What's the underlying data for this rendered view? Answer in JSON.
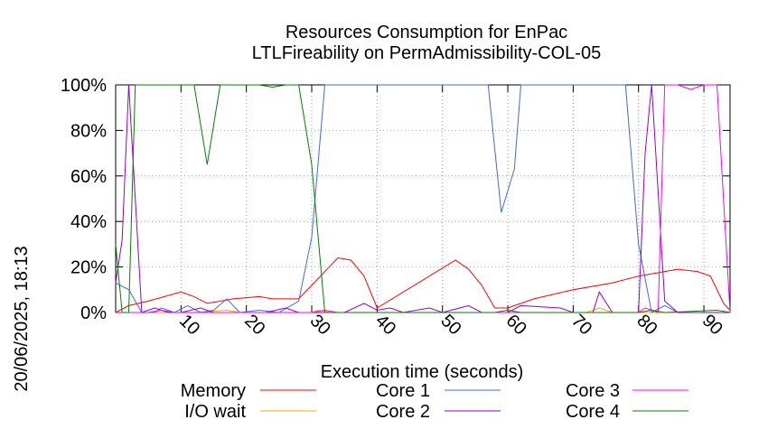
{
  "chart_data": {
    "type": "line",
    "title": "Resources Consumption for EnPac",
    "subtitle": "LTLFireability on PermAdmissibility-COL-05",
    "side_label": "20/06/2025, 18:13",
    "xlabel": "Execution time (seconds)",
    "ylabel": "",
    "xlim": [
      0,
      94
    ],
    "ylim": [
      0,
      100
    ],
    "x_ticks": [
      10,
      20,
      30,
      40,
      50,
      60,
      70,
      80,
      90
    ],
    "y_ticks": [
      {
        "value": 0,
        "label": "0%"
      },
      {
        "value": 20,
        "label": "20%"
      },
      {
        "value": 40,
        "label": "40%"
      },
      {
        "value": 60,
        "label": "60%"
      },
      {
        "value": 80,
        "label": "80%"
      },
      {
        "value": 100,
        "label": "100%"
      }
    ],
    "grid": true,
    "legend_position": "bottom",
    "series": [
      {
        "name": "Memory",
        "color": "#ff0000",
        "points": [
          [
            0,
            0
          ],
          [
            2,
            3
          ],
          [
            5,
            5
          ],
          [
            10,
            9
          ],
          [
            12,
            7
          ],
          [
            14,
            4
          ],
          [
            18,
            6
          ],
          [
            22,
            7
          ],
          [
            24,
            6
          ],
          [
            28,
            6
          ],
          [
            34,
            24
          ],
          [
            36,
            23
          ],
          [
            38,
            16
          ],
          [
            40,
            2
          ],
          [
            52,
            23
          ],
          [
            54,
            19
          ],
          [
            56,
            12
          ],
          [
            58,
            2
          ],
          [
            60,
            2
          ],
          [
            64,
            6
          ],
          [
            70,
            10
          ],
          [
            76,
            13
          ],
          [
            80,
            16
          ],
          [
            86,
            19
          ],
          [
            89,
            18
          ],
          [
            91,
            16
          ],
          [
            93,
            4
          ],
          [
            94,
            1
          ]
        ]
      },
      {
        "name": "I/O wait",
        "color": "#ffa500",
        "points": [
          [
            0,
            0
          ],
          [
            12,
            0
          ],
          [
            17,
            1
          ],
          [
            19,
            0
          ],
          [
            30,
            0
          ],
          [
            31,
            1
          ],
          [
            33,
            0
          ],
          [
            72,
            0
          ],
          [
            74,
            2
          ],
          [
            76,
            0
          ],
          [
            94,
            0
          ]
        ]
      },
      {
        "name": "Core 1",
        "color": "#4169e1",
        "points": [
          [
            0,
            13
          ],
          [
            2,
            10
          ],
          [
            4,
            0
          ],
          [
            6,
            0
          ],
          [
            7,
            2
          ],
          [
            9,
            0
          ],
          [
            11,
            3
          ],
          [
            13,
            0
          ],
          [
            15,
            1
          ],
          [
            17,
            6
          ],
          [
            19,
            0
          ],
          [
            22,
            1
          ],
          [
            25,
            0
          ],
          [
            28,
            5
          ],
          [
            30,
            33
          ],
          [
            32,
            100
          ],
          [
            57,
            100
          ],
          [
            59,
            44
          ],
          [
            61,
            63
          ],
          [
            62,
            100
          ],
          [
            78,
            100
          ],
          [
            80,
            30
          ],
          [
            82,
            0
          ],
          [
            84,
            3
          ],
          [
            86,
            0
          ],
          [
            94,
            0
          ]
        ]
      },
      {
        "name": "Core 2",
        "color": "#9400d3",
        "points": [
          [
            0,
            13
          ],
          [
            1,
            32
          ],
          [
            2,
            100
          ],
          [
            4,
            0
          ],
          [
            6,
            2
          ],
          [
            8,
            0
          ],
          [
            10,
            0
          ],
          [
            13,
            2
          ],
          [
            15,
            0
          ],
          [
            20,
            0
          ],
          [
            23,
            0
          ],
          [
            26,
            2
          ],
          [
            28,
            0
          ],
          [
            35,
            0
          ],
          [
            38,
            4
          ],
          [
            40,
            1
          ],
          [
            42,
            2
          ],
          [
            44,
            0
          ],
          [
            48,
            2
          ],
          [
            50,
            0
          ],
          [
            54,
            3
          ],
          [
            56,
            0
          ],
          [
            60,
            0
          ],
          [
            62,
            3
          ],
          [
            68,
            2
          ],
          [
            70,
            0
          ],
          [
            73,
            0
          ],
          [
            74,
            9
          ],
          [
            76,
            0
          ],
          [
            80,
            0
          ],
          [
            81,
            70
          ],
          [
            82,
            100
          ],
          [
            84,
            5
          ],
          [
            86,
            0
          ],
          [
            90,
            0
          ],
          [
            94,
            0
          ]
        ]
      },
      {
        "name": "Core 3",
        "color": "#ff00ff",
        "points": [
          [
            0,
            0
          ],
          [
            5,
            0
          ],
          [
            7,
            1
          ],
          [
            9,
            0
          ],
          [
            30,
            0
          ],
          [
            32,
            1
          ],
          [
            34,
            0
          ],
          [
            80,
            0
          ],
          [
            81,
            2
          ],
          [
            83,
            0
          ],
          [
            84,
            100
          ],
          [
            86,
            100
          ],
          [
            88,
            98
          ],
          [
            90,
            100
          ],
          [
            92,
            100
          ],
          [
            94,
            0
          ]
        ]
      },
      {
        "name": "Core 4",
        "color": "#008000",
        "points": [
          [
            0,
            30
          ],
          [
            1,
            0
          ],
          [
            2,
            0
          ],
          [
            3,
            100
          ],
          [
            12,
            100
          ],
          [
            14,
            65
          ],
          [
            16,
            100
          ],
          [
            22,
            100
          ],
          [
            24,
            99
          ],
          [
            26,
            100
          ],
          [
            28,
            100
          ],
          [
            30,
            65
          ],
          [
            32,
            0
          ],
          [
            40,
            0
          ],
          [
            58,
            0
          ],
          [
            60,
            1
          ],
          [
            62,
            0
          ],
          [
            80,
            0
          ],
          [
            82,
            1
          ],
          [
            84,
            0
          ],
          [
            92,
            1
          ],
          [
            94,
            0
          ]
        ]
      }
    ]
  }
}
